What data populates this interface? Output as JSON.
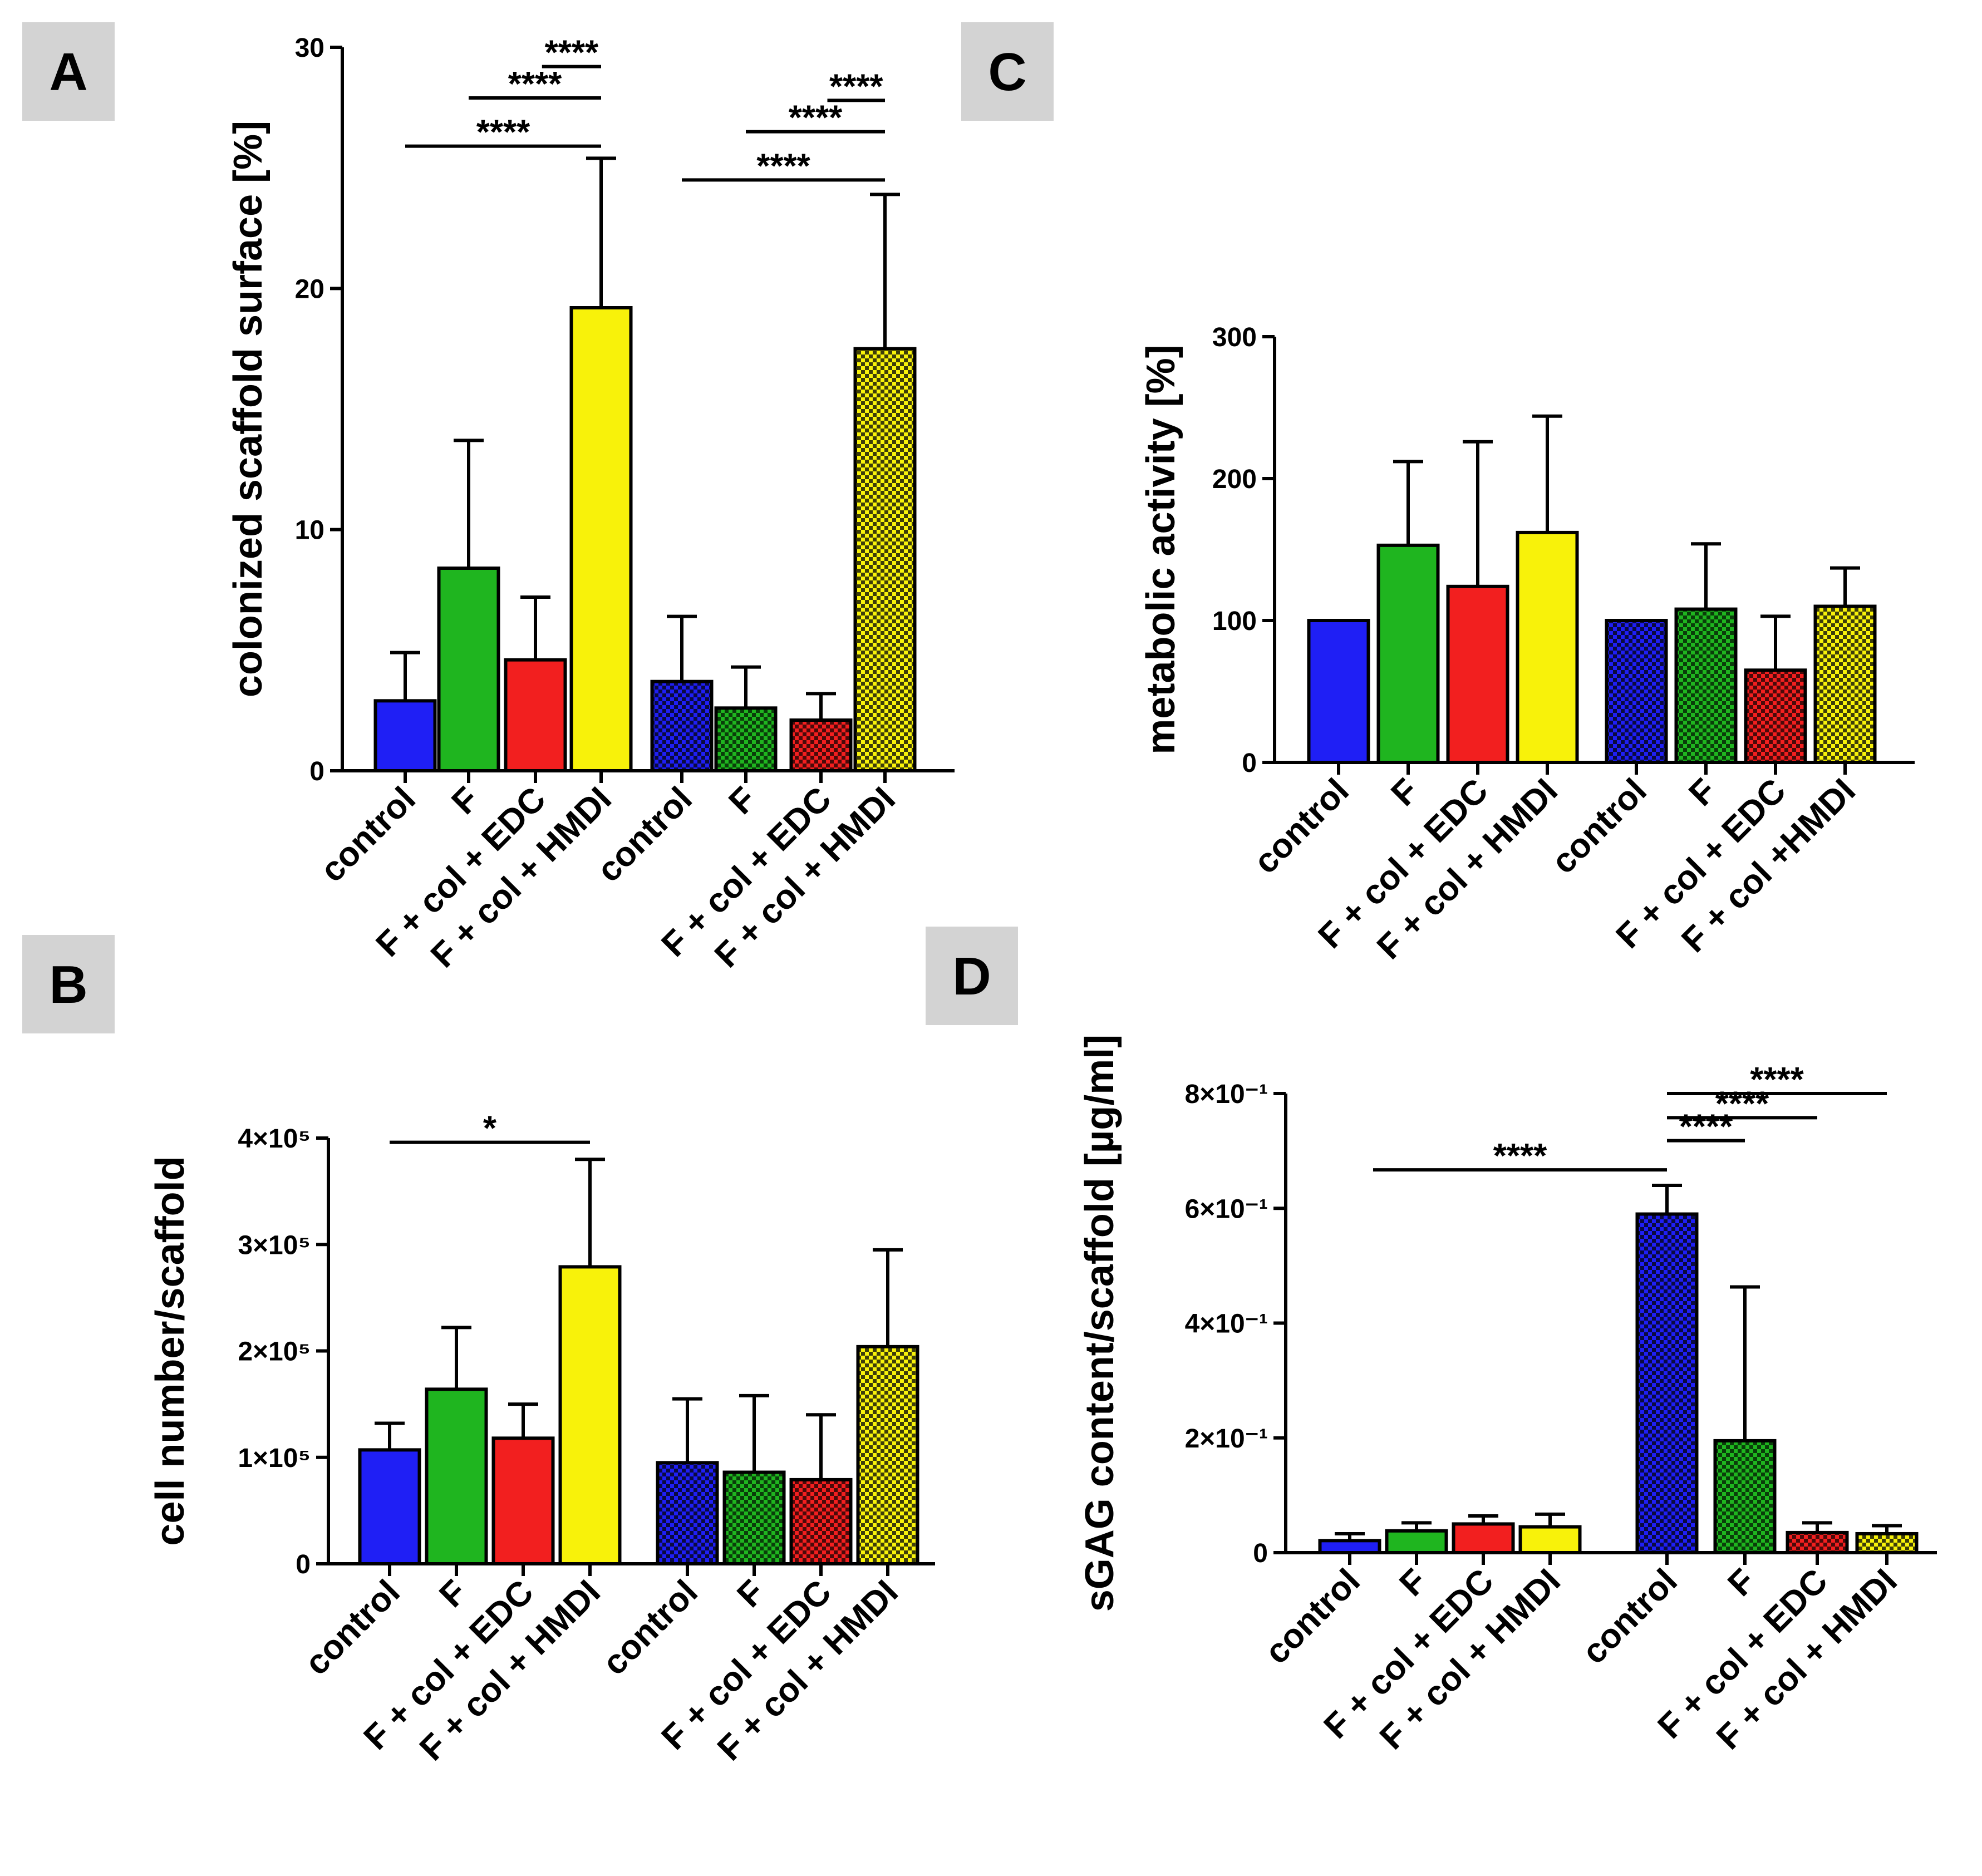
{
  "colors": {
    "blue": "#1f1ff5",
    "green": "#1fb51f",
    "red": "#f21f1f",
    "yellow": "#f8f20a",
    "panel_label_bg": "#d3d3d3"
  },
  "chart_data": [
    {
      "panel": "A",
      "type": "bar",
      "ylabel": "colonized scaffold surface [%]",
      "ylim": [
        0,
        30
      ],
      "yticks": [
        0,
        10,
        20,
        30
      ],
      "ytick_labels": [
        "0",
        "10",
        "20",
        "30"
      ],
      "categories": [
        "control",
        "F",
        "F + col + EDC",
        "F + col + HMDI",
        "control",
        "F",
        "F + col + EDC",
        "F + col + HMDI"
      ],
      "groups": [
        {
          "pattern": "solid",
          "values": [
            2.9,
            8.4,
            4.6,
            19.2
          ],
          "errors": [
            2.0,
            5.3,
            2.6,
            6.2
          ]
        },
        {
          "pattern": "checkered",
          "values": [
            3.7,
            2.6,
            2.1,
            17.5
          ],
          "errors": [
            2.7,
            1.7,
            1.1,
            6.4
          ]
        }
      ],
      "significance": [
        {
          "from": 0,
          "to": 3,
          "y": 25.9,
          "label": "****"
        },
        {
          "from": 1,
          "to": 3,
          "y": 27.9,
          "label": "****"
        },
        {
          "from": 2.1,
          "to": 3,
          "y": 29.2,
          "label": "****"
        },
        {
          "from": 4,
          "to": 7,
          "y": 24.5,
          "label": "****"
        },
        {
          "from": 5,
          "to": 7,
          "y": 26.5,
          "label": "****"
        },
        {
          "from": 6.1,
          "to": 7,
          "y": 27.8,
          "label": "****"
        }
      ]
    },
    {
      "panel": "B",
      "type": "bar",
      "ylabel": "cell number/scaffold",
      "ylim": [
        0,
        400000
      ],
      "yticks": [
        0,
        100000,
        200000,
        300000,
        400000
      ],
      "ytick_labels": [
        "0",
        "1×10⁵",
        "2×10⁵",
        "3×10⁵",
        "4×10⁵"
      ],
      "categories": [
        "control",
        "F",
        "F + col + EDC",
        "F + col + HMDI",
        "control",
        "F",
        "F + col + EDC",
        "F + col + HMDI"
      ],
      "groups": [
        {
          "pattern": "solid",
          "values": [
            107000,
            164000,
            118000,
            279000
          ],
          "errors": [
            25000,
            58000,
            32000,
            101000
          ]
        },
        {
          "pattern": "checkered",
          "values": [
            95000,
            86000,
            79000,
            204000
          ],
          "errors": [
            60000,
            72000,
            61000,
            91000
          ]
        }
      ],
      "significance": [
        {
          "from": 0,
          "to": 3,
          "y": 396000,
          "label": "*"
        }
      ]
    },
    {
      "panel": "C",
      "type": "bar",
      "ylabel": "metabolic activity [%]",
      "ylim": [
        0,
        300
      ],
      "yticks": [
        0,
        100,
        200,
        300
      ],
      "ytick_labels": [
        "0",
        "100",
        "200",
        "300"
      ],
      "categories": [
        "control",
        "F",
        "F + col + EDC",
        "F + col + HMDI",
        "control",
        "F",
        "F + col + EDC",
        "F + col +HMDI"
      ],
      "groups": [
        {
          "pattern": "solid",
          "values": [
            100,
            153,
            124,
            162
          ],
          "errors": [
            0,
            59,
            102,
            82
          ]
        },
        {
          "pattern": "checkered",
          "values": [
            100,
            108,
            65,
            110
          ],
          "errors": [
            0,
            46,
            38,
            27
          ]
        }
      ],
      "significance": []
    },
    {
      "panel": "D",
      "type": "bar",
      "ylabel": "sGAG content/scaffold [µg/ml]",
      "ylim": [
        0,
        0.8
      ],
      "yticks": [
        0,
        0.2,
        0.4,
        0.6,
        0.8
      ],
      "ytick_labels": [
        "0",
        "2×10⁻¹",
        "4×10⁻¹",
        "6×10⁻¹",
        "8×10⁻¹"
      ],
      "categories": [
        "control",
        "F",
        "F + col + EDC",
        "F + col + HMDI",
        "control",
        "F",
        "F + col + EDC",
        "F + col + HMDI"
      ],
      "groups": [
        {
          "pattern": "solid",
          "values": [
            0.021,
            0.038,
            0.05,
            0.045
          ],
          "errors": [
            0.012,
            0.014,
            0.014,
            0.022
          ]
        },
        {
          "pattern": "checkered",
          "values": [
            0.59,
            0.195,
            0.035,
            0.033
          ],
          "errors": [
            0.05,
            0.268,
            0.017,
            0.014
          ]
        }
      ],
      "significance": [
        {
          "from": 0.35,
          "to": 4,
          "y": 0.667,
          "label": "****"
        },
        {
          "from": 4,
          "to": 5,
          "y": 0.718,
          "label": "****"
        },
        {
          "from": 4,
          "to": 6,
          "y": 0.758,
          "label": "****"
        },
        {
          "from": 4,
          "to": 7,
          "y": 0.8,
          "label": "****"
        }
      ]
    }
  ]
}
